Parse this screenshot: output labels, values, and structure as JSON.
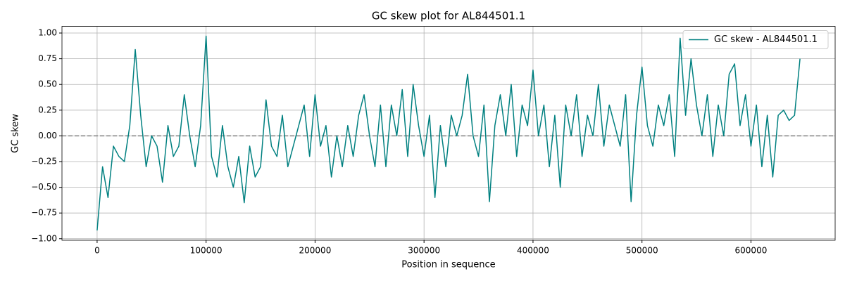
{
  "chart_data": {
    "type": "line",
    "title": "GC skew plot for AL844501.1",
    "xlabel": "Position in sequence",
    "ylabel": "GC skew",
    "x": [
      0,
      5000,
      10000,
      15000,
      20000,
      25000,
      30000,
      35000,
      40000,
      45000,
      50000,
      55000,
      60000,
      65000,
      70000,
      75000,
      80000,
      85000,
      90000,
      95000,
      100000,
      105000,
      110000,
      115000,
      120000,
      125000,
      130000,
      135000,
      140000,
      145000,
      150000,
      155000,
      160000,
      165000,
      170000,
      175000,
      180000,
      185000,
      190000,
      195000,
      200000,
      205000,
      210000,
      215000,
      220000,
      225000,
      230000,
      235000,
      240000,
      245000,
      250000,
      255000,
      260000,
      265000,
      270000,
      275000,
      280000,
      285000,
      290000,
      295000,
      300000,
      305000,
      310000,
      315000,
      320000,
      325000,
      330000,
      335000,
      340000,
      345000,
      350000,
      355000,
      360000,
      365000,
      370000,
      375000,
      380000,
      385000,
      390000,
      395000,
      400000,
      405000,
      410000,
      415000,
      420000,
      425000,
      430000,
      435000,
      440000,
      445000,
      450000,
      455000,
      460000,
      465000,
      470000,
      475000,
      480000,
      485000,
      490000,
      495000,
      500000,
      505000,
      510000,
      515000,
      520000,
      525000,
      530000,
      535000,
      540000,
      545000,
      550000,
      555000,
      560000,
      565000,
      570000,
      575000,
      580000,
      585000,
      590000,
      595000,
      600000,
      605000,
      610000,
      615000,
      620000,
      625000,
      630000,
      635000,
      640000,
      645000
    ],
    "series": [
      {
        "name": "GC skew - AL844501.1",
        "color": "#008080",
        "values": [
          -0.92,
          -0.3,
          -0.6,
          -0.1,
          -0.2,
          -0.25,
          0.1,
          0.84,
          0.2,
          -0.3,
          0.0,
          -0.1,
          -0.45,
          0.1,
          -0.2,
          -0.1,
          0.4,
          0.0,
          -0.3,
          0.1,
          0.97,
          -0.2,
          -0.4,
          0.1,
          -0.3,
          -0.5,
          -0.2,
          -0.65,
          -0.1,
          -0.4,
          -0.3,
          0.35,
          -0.1,
          -0.2,
          0.2,
          -0.3,
          -0.1,
          0.1,
          0.3,
          -0.2,
          0.4,
          -0.1,
          0.1,
          -0.4,
          0.0,
          -0.3,
          0.1,
          -0.2,
          0.2,
          0.4,
          0.0,
          -0.3,
          0.3,
          -0.3,
          0.3,
          0.0,
          0.45,
          -0.2,
          0.5,
          0.1,
          -0.2,
          0.2,
          -0.6,
          0.1,
          -0.3,
          0.2,
          0.0,
          0.2,
          0.6,
          0.0,
          -0.2,
          0.3,
          -0.64,
          0.1,
          0.4,
          0.0,
          0.5,
          -0.2,
          0.3,
          0.1,
          0.64,
          0.0,
          0.3,
          -0.3,
          0.2,
          -0.5,
          0.3,
          0.0,
          0.4,
          -0.2,
          0.2,
          0.0,
          0.5,
          -0.1,
          0.3,
          0.1,
          -0.1,
          0.4,
          -0.64,
          0.2,
          0.67,
          0.1,
          -0.1,
          0.3,
          0.1,
          0.4,
          -0.2,
          0.95,
          0.2,
          0.75,
          0.3,
          0.0,
          0.4,
          -0.2,
          0.3,
          0.0,
          0.6,
          0.7,
          0.1,
          0.4,
          -0.1,
          0.3,
          -0.3,
          0.2,
          -0.4,
          0.2,
          0.25,
          0.15,
          0.2,
          0.75
        ]
      }
    ],
    "hline": 0,
    "hline_color": "#808080",
    "xlim": [
      -32250,
      677250
    ],
    "ylim": [
      -1.015,
      1.065
    ],
    "xticks": [
      0,
      100000,
      200000,
      300000,
      400000,
      500000,
      600000
    ],
    "yticks": [
      {
        "value": -1,
        "label": "−1.00"
      },
      {
        "value": -0.75,
        "label": "−0.75"
      },
      {
        "value": -0.5,
        "label": "−0.50"
      },
      {
        "value": -0.25,
        "label": "−0.25"
      },
      {
        "value": 0,
        "label": "0.00"
      },
      {
        "value": 0.25,
        "label": "0.25"
      },
      {
        "value": 0.5,
        "label": "0.50"
      },
      {
        "value": 0.75,
        "label": "0.75"
      },
      {
        "value": 1,
        "label": "1.00"
      }
    ],
    "grid": true,
    "legend": "upper right"
  }
}
